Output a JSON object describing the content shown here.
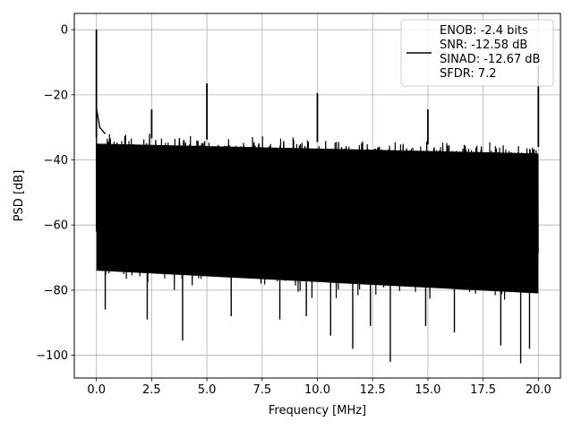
{
  "chart_data": {
    "type": "line",
    "title": "",
    "xlabel": "Frequency [MHz]",
    "ylabel": "PSD [dB]",
    "xlim": [
      -1.0,
      21.0
    ],
    "ylim": [
      -107.0,
      5.0
    ],
    "x_ticks": [
      0.0,
      2.5,
      5.0,
      7.5,
      10.0,
      12.5,
      15.0,
      17.5,
      20.0
    ],
    "x_tick_labels": [
      "0.0",
      "2.5",
      "5.0",
      "7.5",
      "10.0",
      "12.5",
      "15.0",
      "17.5",
      "20.0"
    ],
    "y_ticks": [
      0,
      -20,
      -40,
      -60,
      -80,
      -100
    ],
    "y_tick_labels": [
      "0",
      "−20",
      "−40",
      "−60",
      "−80",
      "−100"
    ],
    "grid": true,
    "legend_position": "top-right",
    "series": [
      {
        "color": "#000000",
        "noise_floor_upper_db": [
          -33,
          -36
        ],
        "noise_floor_lower_db": [
          -78,
          -85
        ],
        "spikes": [
          {
            "x": 0.0,
            "y": 0.0
          },
          {
            "x": 2.5,
            "y": -24.5
          },
          {
            "x": 5.0,
            "y": -16.5
          },
          {
            "x": 10.0,
            "y": -19.5
          },
          {
            "x": 15.0,
            "y": -24.5
          },
          {
            "x": 20.0,
            "y": -11.0
          }
        ],
        "low_outliers": [
          {
            "x": 0.4,
            "y": -86
          },
          {
            "x": 2.3,
            "y": -89
          },
          {
            "x": 3.9,
            "y": -95.5
          },
          {
            "x": 6.1,
            "y": -88
          },
          {
            "x": 8.3,
            "y": -89
          },
          {
            "x": 9.5,
            "y": -88
          },
          {
            "x": 10.6,
            "y": -94
          },
          {
            "x": 11.6,
            "y": -98
          },
          {
            "x": 12.4,
            "y": -91
          },
          {
            "x": 13.3,
            "y": -102
          },
          {
            "x": 14.9,
            "y": -91
          },
          {
            "x": 16.2,
            "y": -93
          },
          {
            "x": 18.3,
            "y": -97
          },
          {
            "x": 19.2,
            "y": -102.5
          },
          {
            "x": 19.6,
            "y": -98
          }
        ]
      }
    ],
    "legend": {
      "lines": [
        "ENOB: -2.4 bits",
        "SNR: -12.58 dB",
        "SINAD: -12.67 dB",
        "SFDR: 7.2"
      ]
    }
  }
}
